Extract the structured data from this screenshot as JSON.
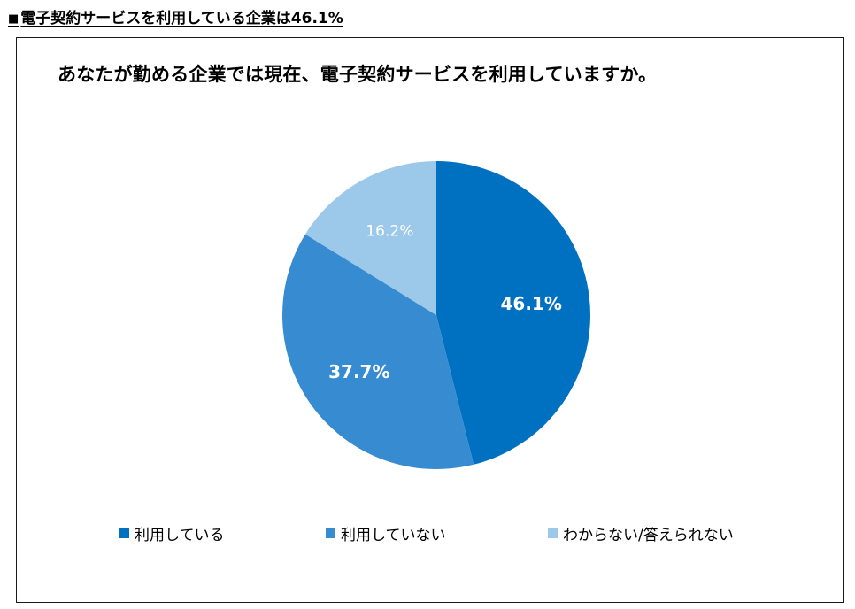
{
  "heading": {
    "marker": "■",
    "text": "電子契約サービスを利用している企業は46.1%"
  },
  "chart_data": {
    "type": "pie",
    "title": "あなたが勤める企業では現在、電子契約サービスを利用していますか。",
    "categories": [
      "利用している",
      "利用していない",
      "わからない/答えられない"
    ],
    "values": [
      46.1,
      37.7,
      16.2
    ],
    "labels": [
      "46.1%",
      "37.7%",
      "16.2%"
    ],
    "colors": [
      "#0070c0",
      "#378bd0",
      "#9cc8ea"
    ],
    "label_colors": [
      "#ffffff",
      "#ffffff",
      "#ffffff"
    ],
    "start_angle": "12 o'clock",
    "direction": "clockwise",
    "legend_position": "bottom"
  }
}
